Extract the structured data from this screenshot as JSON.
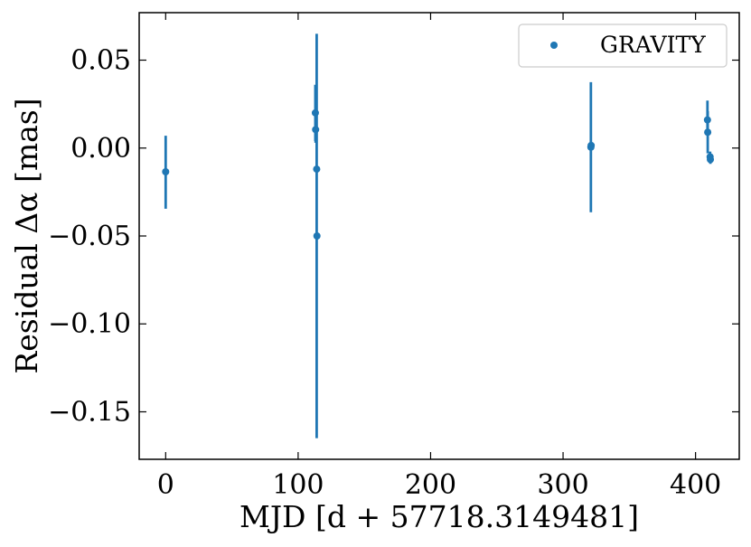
{
  "chart_data": {
    "type": "scatter",
    "title": "",
    "xlabel": "MJD [d + 57718.3149481]",
    "ylabel": "Residual Δα [mas]",
    "xlim": [
      -20,
      433
    ],
    "ylim": [
      -0.177,
      0.077
    ],
    "xticks": [
      0,
      100,
      200,
      300,
      400
    ],
    "xtick_labels": [
      "0",
      "100",
      "200",
      "300",
      "400"
    ],
    "yticks": [
      0.05,
      0.0,
      -0.05,
      -0.1,
      -0.15
    ],
    "ytick_labels": [
      "0.05",
      "0.00",
      "−0.05",
      "−0.10",
      "−0.15"
    ],
    "grid": false,
    "legend": {
      "position": "top-right",
      "entries": [
        "GRAVITY"
      ]
    },
    "series": [
      {
        "name": "GRAVITY",
        "color": "#1f77b4",
        "marker": "circle",
        "points": [
          {
            "x": 0.0,
            "y": -0.0135,
            "yerr_low": -0.0345,
            "yerr_high": 0.007
          },
          {
            "x": 113.0,
            "y": 0.02,
            "yerr_low": 0.004,
            "yerr_high": 0.036
          },
          {
            "x": 113.2,
            "y": 0.0105,
            "yerr_low": 0.003,
            "yerr_high": 0.018
          },
          {
            "x": 114.0,
            "y": -0.012,
            "yerr_low": -0.165,
            "yerr_high": 0.065
          },
          {
            "x": 114.2,
            "y": -0.05,
            "yerr_low": -0.05,
            "yerr_high": -0.05
          },
          {
            "x": 321.0,
            "y": 0.0005,
            "yerr_low": -0.0365,
            "yerr_high": 0.0375
          },
          {
            "x": 321.2,
            "y": 0.0015,
            "yerr_low": 0.0,
            "yerr_high": 0.003
          },
          {
            "x": 409.0,
            "y": 0.016,
            "yerr_low": 0.009,
            "yerr_high": 0.027
          },
          {
            "x": 409.2,
            "y": 0.009,
            "yerr_low": -0.003,
            "yerr_high": 0.021
          },
          {
            "x": 411.0,
            "y": -0.005,
            "yerr_low": -0.008,
            "yerr_high": -0.002
          },
          {
            "x": 411.2,
            "y": -0.0065,
            "yerr_low": -0.009,
            "yerr_high": -0.004
          }
        ]
      }
    ]
  }
}
